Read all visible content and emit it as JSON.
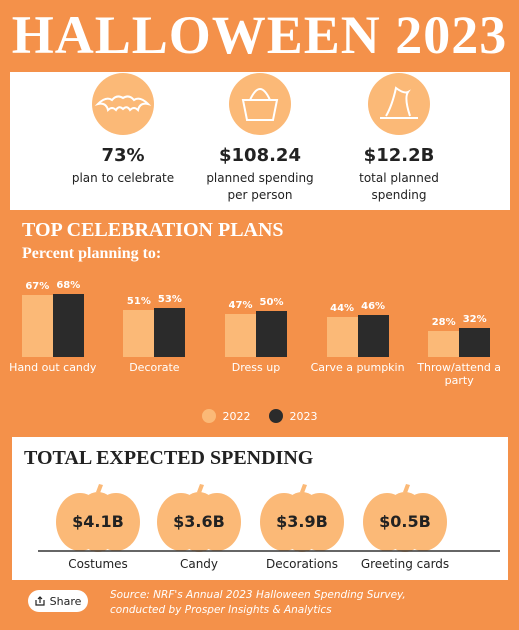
{
  "header": {
    "title": "HALLOWEEN 2023"
  },
  "stats": [
    {
      "value": "73%",
      "label": "plan to celebrate"
    },
    {
      "value": "$108.24",
      "label": "planned spending per person"
    },
    {
      "value": "$12.2B",
      "label": "total planned spending"
    }
  ],
  "chart_data": {
    "type": "bar",
    "title": "TOP CELEBRATION PLANS",
    "subtitle": "Percent planning to:",
    "categories": [
      "Hand out candy",
      "Decorate",
      "Dress up",
      "Carve a pumpkin",
      "Throw/attend a party"
    ],
    "series": [
      {
        "name": "2022",
        "color": "#fbb977",
        "values": [
          67,
          51,
          47,
          44,
          28
        ],
        "value_labels": [
          "67%",
          "51%",
          "47%",
          "44%",
          "28%"
        ]
      },
      {
        "name": "2023",
        "color": "#2b2b2b",
        "values": [
          68,
          53,
          50,
          46,
          32
        ],
        "value_labels": [
          "68%",
          "53%",
          "50%",
          "46%",
          "32%"
        ]
      }
    ],
    "ylim": [
      0,
      100
    ],
    "legend": "bottom"
  },
  "spending": {
    "title": "TOTAL EXPECTED SPENDING",
    "items": [
      {
        "value": "$4.1B",
        "label": "Costumes"
      },
      {
        "value": "$3.6B",
        "label": "Candy"
      },
      {
        "value": "$3.9B",
        "label": "Decorations"
      },
      {
        "value": "$0.5B",
        "label": "Greeting cards"
      }
    ]
  },
  "share": "Share",
  "source": "Source: NRF's Annual 2023 Halloween Spending Survey, conducted by Prosper Insights & Analytics"
}
